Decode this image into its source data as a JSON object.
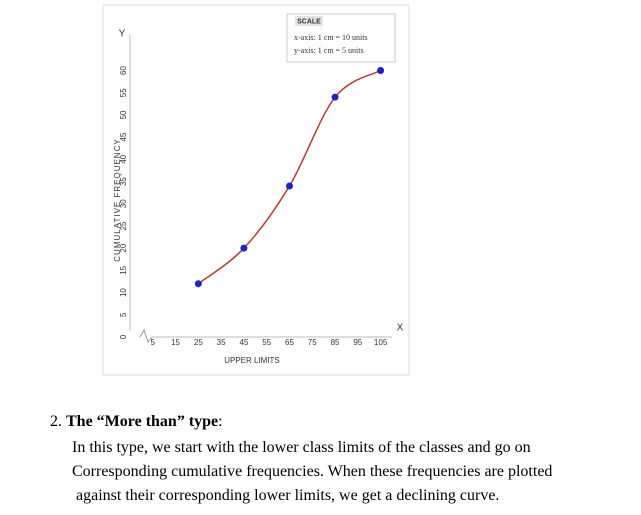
{
  "chart_data": {
    "type": "line",
    "x_label": "UPPER LIMITS",
    "y_label": "CUMULATIVE FREQUENCY",
    "x_axis_letter": "X",
    "y_axis_letter": "Y",
    "scale": {
      "title": "SCALE",
      "lines": [
        "x-axis: 1 cm = 10 units",
        "y-axis: 1 cm = 5 units"
      ]
    },
    "x": [
      25,
      45,
      65,
      85,
      105
    ],
    "values": [
      12,
      20,
      34,
      54,
      60
    ],
    "color": "#c0392b",
    "marker_color": "#1f1fd6",
    "xlim": [
      -5,
      110
    ],
    "xticks": [
      5,
      15,
      25,
      35,
      45,
      55,
      65,
      75,
      85,
      95,
      105
    ],
    "ylim": [
      0,
      68
    ],
    "yticks": [
      0,
      5,
      10,
      15,
      20,
      25,
      30,
      35,
      40,
      45,
      50,
      55,
      60
    ],
    "grid": false
  },
  "document": {
    "heading": {
      "number": "2.",
      "title": "The “More than” type",
      "suffix": ":"
    },
    "paragraph": [
      "In this type, we start with the lower class limits of the classes and go on",
      "Corresponding cumulative frequencies. When these frequencies are plotted",
      "against their corresponding lower limits, we get a declining curve."
    ]
  }
}
